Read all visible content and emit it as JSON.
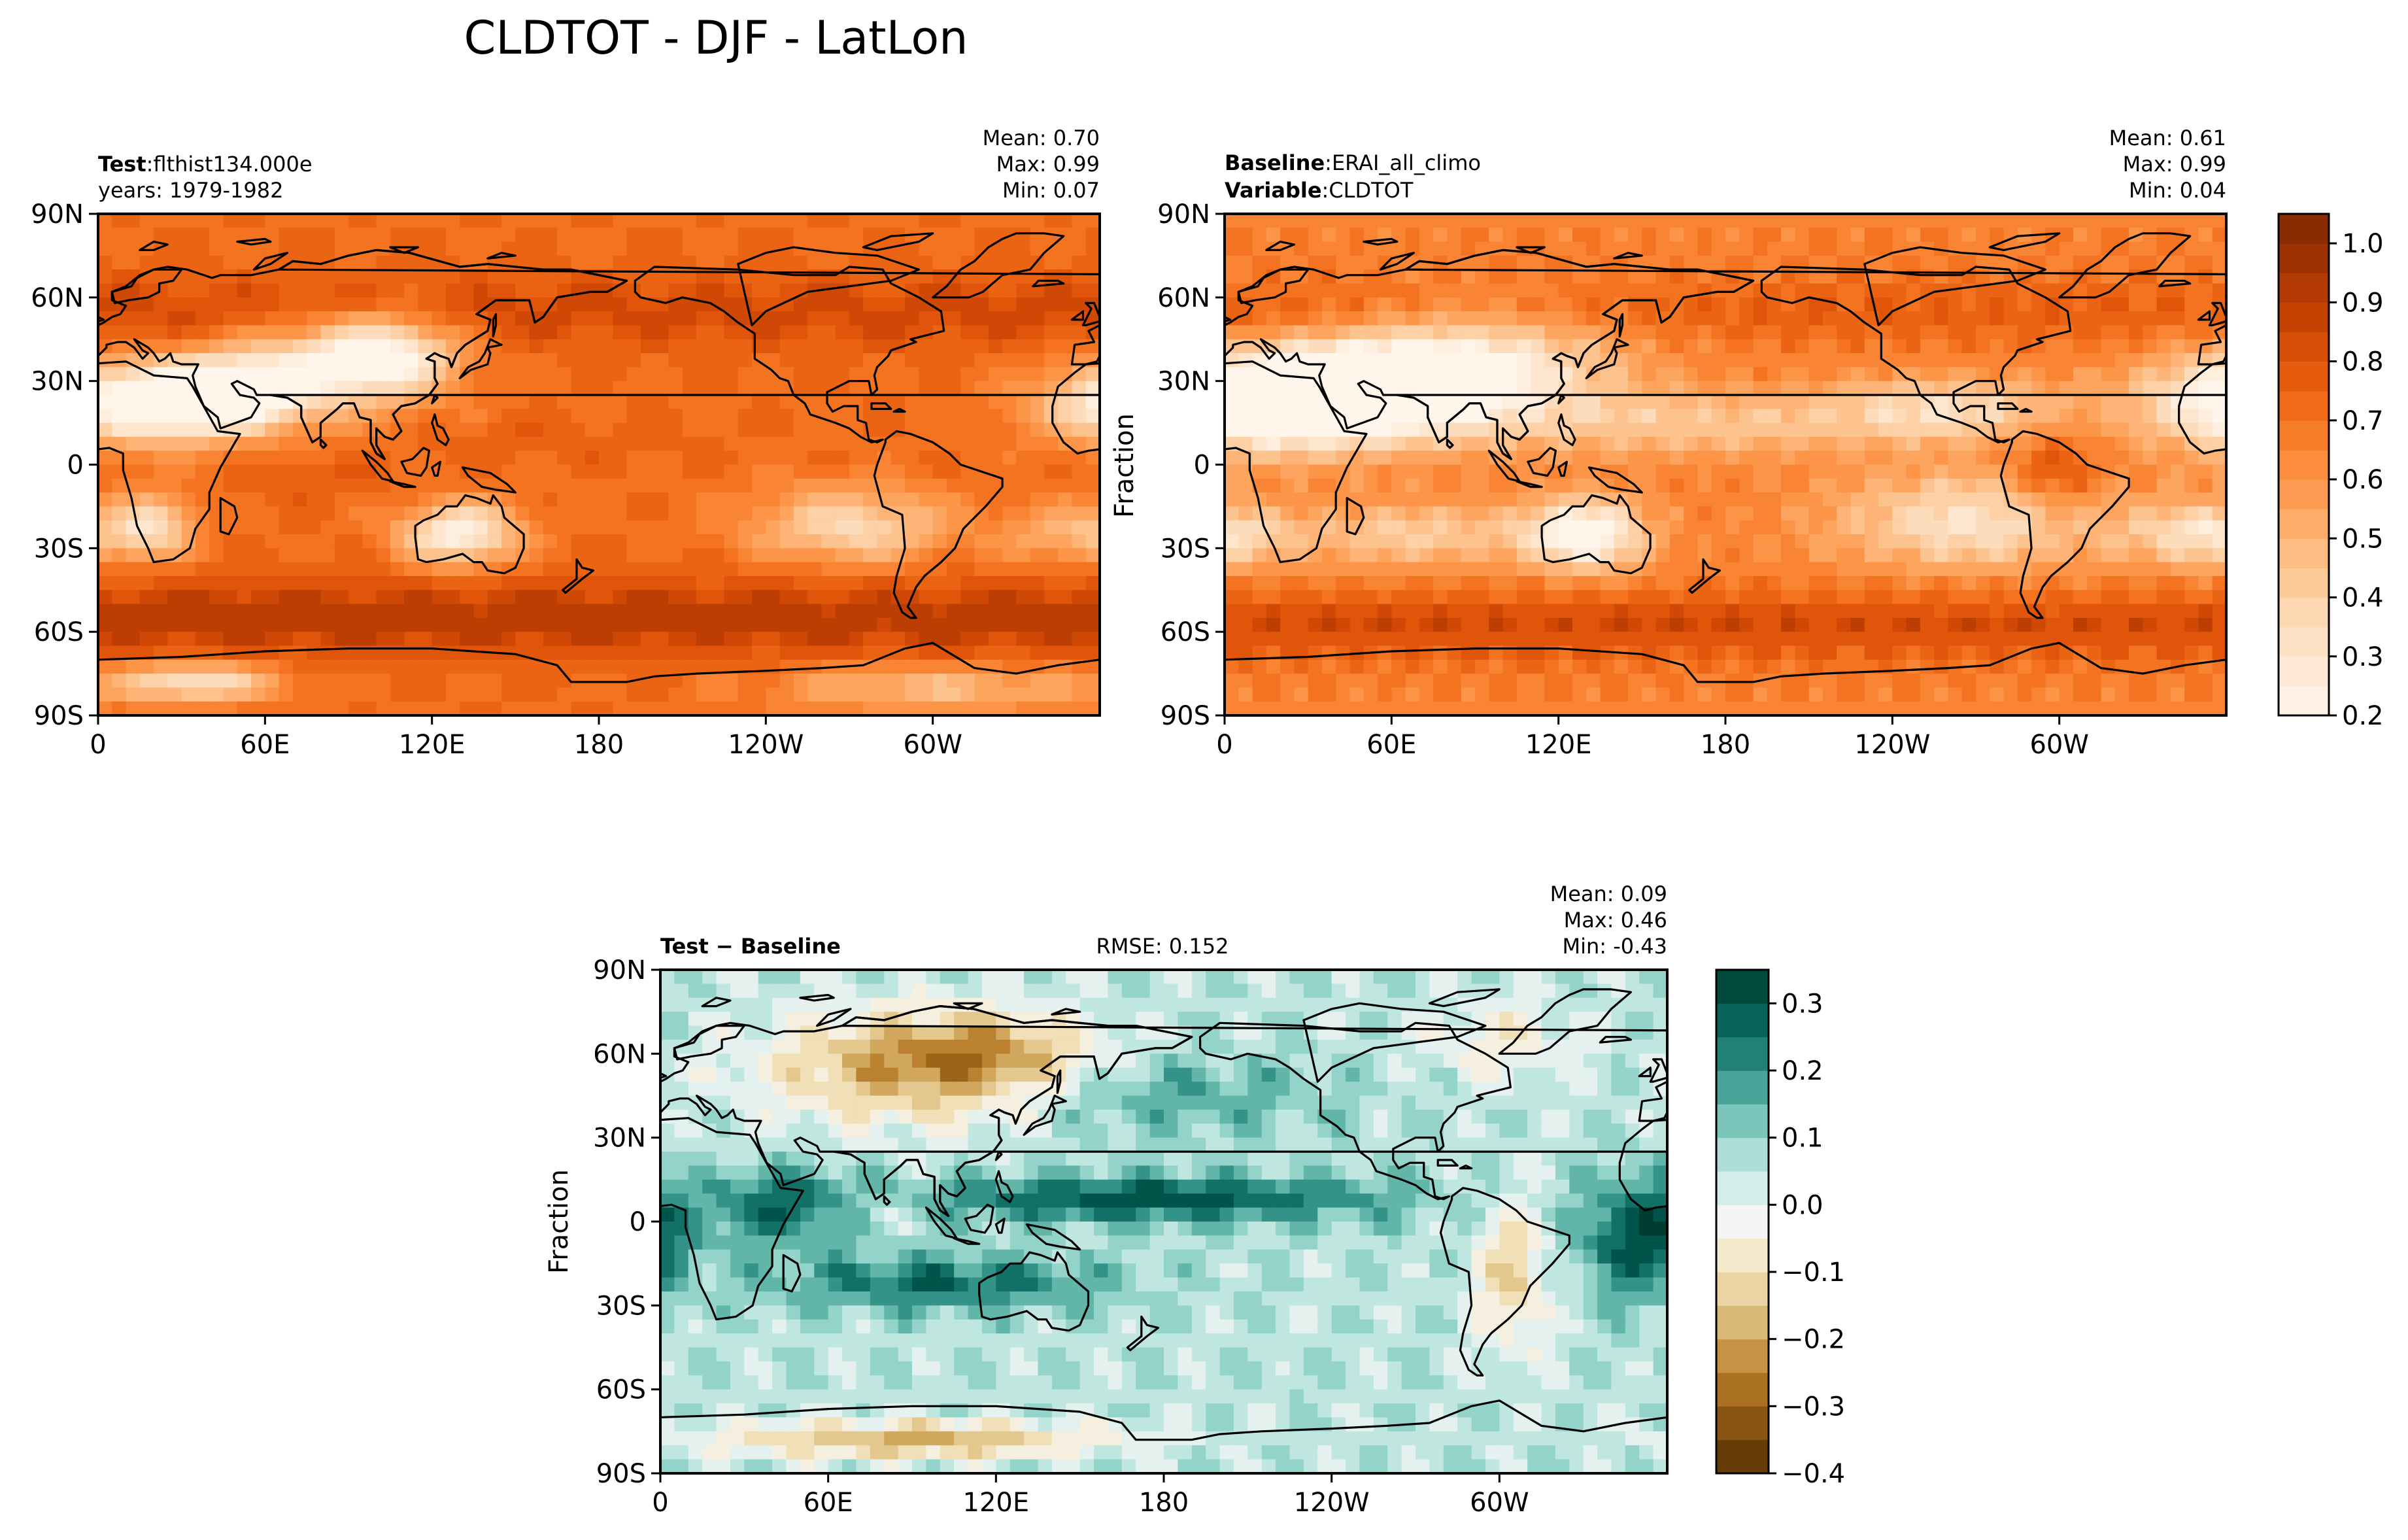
{
  "figure": {
    "title": "CLDTOT - DJF - LatLon"
  },
  "colors": {
    "orange_scale": [
      "#fff5eb",
      "#fee9d4",
      "#fdd8b3",
      "#fdc28c",
      "#fda762",
      "#fb8d3d",
      "#f2701d",
      "#e25609",
      "#c44103",
      "#a33303",
      "#7f2704"
    ],
    "diverging_scale": [
      "#543005",
      "#7a4a0d",
      "#a0661a",
      "#bf8836",
      "#d6b26b",
      "#ead19d",
      "#f5e8c8",
      "#f5f5f5",
      "#d1ece8",
      "#a7ddd5",
      "#6fc0b3",
      "#3b9a8f",
      "#15756b",
      "#00574c",
      "#003c30"
    ],
    "land_outline": "#000000"
  },
  "chart_data": [
    {
      "type": "heatmap",
      "panel": "test",
      "label_bold": "Test",
      "label_value": "flthist134.000e",
      "label_line2": "years: 1979-1982",
      "stats": {
        "mean": "Mean:  0.70",
        "max": "Max:  0.99",
        "min": "Min:  0.07"
      },
      "xticks": [
        "0",
        "60E",
        "120E",
        "180",
        "120W",
        "60W"
      ],
      "yticks": [
        "90N",
        "60N",
        "30N",
        "0",
        "30S",
        "60S",
        "90S"
      ],
      "xlim": [
        0,
        360
      ],
      "ylim": [
        -90,
        90
      ],
      "ylabel": ""
    },
    {
      "type": "heatmap",
      "panel": "baseline",
      "label_bold": "Baseline",
      "label_value": "ERAI_all_climo",
      "label2_bold": "Variable",
      "label2_value": "CLDTOT",
      "stats": {
        "mean": "Mean:  0.61",
        "max": "Max:  0.99",
        "min": "Min:  0.04"
      },
      "xticks": [
        "0",
        "60E",
        "120E",
        "180",
        "120W",
        "60W"
      ],
      "yticks": [
        "90N",
        "60N",
        "30N",
        "0",
        "30S",
        "60S",
        "90S"
      ],
      "xlim": [
        0,
        360
      ],
      "ylim": [
        -90,
        90
      ],
      "ylabel": "Fraction",
      "colorbar_ticks": [
        "0.2",
        "0.3",
        "0.4",
        "0.5",
        "0.6",
        "0.7",
        "0.8",
        "0.9",
        "1.0"
      ],
      "colorbar_range": [
        0.2,
        1.05
      ]
    },
    {
      "type": "heatmap",
      "panel": "difference",
      "label_bold": "Test − Baseline",
      "rmse": "RMSE: 0.152",
      "stats": {
        "mean": "Mean:  0.09",
        "max": "Max:  0.46",
        "min": "Min: -0.43"
      },
      "xticks": [
        "0",
        "60E",
        "120E",
        "180",
        "120W",
        "60W"
      ],
      "yticks": [
        "90N",
        "60N",
        "30N",
        "0",
        "30S",
        "60S",
        "90S"
      ],
      "xlim": [
        0,
        360
      ],
      "ylim": [
        -90,
        90
      ],
      "ylabel": "Fraction",
      "colorbar_ticks": [
        "0.3",
        "0.2",
        "0.1",
        "0.0",
        "−0.1",
        "−0.2",
        "−0.3",
        "−0.4"
      ],
      "colorbar_range": [
        -0.4,
        0.35
      ]
    }
  ]
}
